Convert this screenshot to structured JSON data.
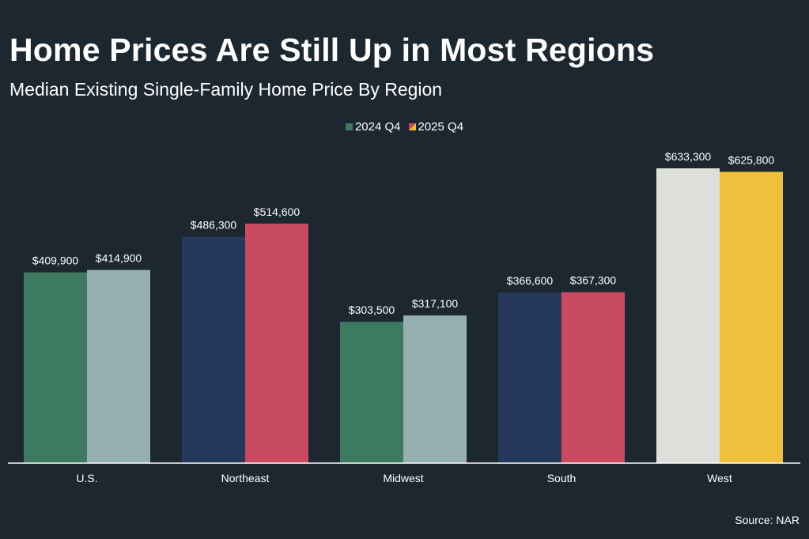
{
  "title": "Home Prices Are Still Up in Most Regions",
  "subtitle": "Median Existing Single-Family Home Price By Region",
  "source": "Source: NAR",
  "colors": {
    "background": "#1d2730",
    "axis": "#ffffff",
    "legend_2024": "#3e7a61",
    "legend_2025_a": "#c84a5f",
    "legend_2025_b": "#eec03b"
  },
  "chart_data": {
    "type": "bar",
    "title": "Home Prices Are Still Up in Most Regions",
    "subtitle": "Median Existing Single-Family Home Price By Region",
    "xlabel": "",
    "ylabel": "",
    "ylim": [
      0,
      700000
    ],
    "grid": false,
    "legend_position": "top-center",
    "categories": [
      "U.S.",
      "Northeast",
      "Midwest",
      "South",
      "West"
    ],
    "series": [
      {
        "name": "2024 Q4",
        "values": [
          409900,
          486300,
          303500,
          366600,
          633300
        ],
        "labels": [
          "$409,900",
          "$486,300",
          "$303,500",
          "$366,600",
          "$633,300"
        ],
        "colors": [
          "#3e7a61",
          "#27395a",
          "#3e7a61",
          "#27395a",
          "#dcdfda"
        ]
      },
      {
        "name": "2025 Q4",
        "values": [
          414900,
          514600,
          317100,
          367300,
          625800
        ],
        "labels": [
          "$414,900",
          "$514,600",
          "$317,100",
          "$367,300",
          "$625,800"
        ],
        "colors": [
          "#96afb0",
          "#c84a5f",
          "#96afb0",
          "#c84a5f",
          "#eec03b"
        ]
      }
    ]
  }
}
